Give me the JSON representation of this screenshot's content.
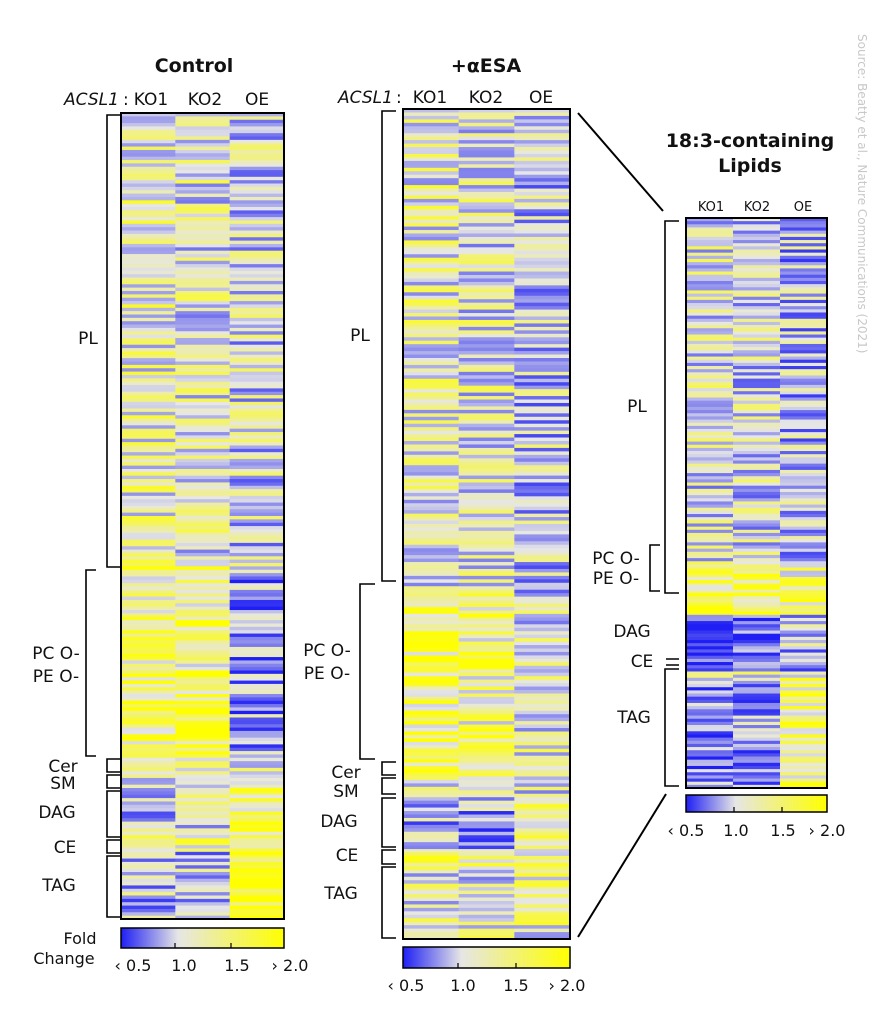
{
  "source": "Source: Beatty et al., Nature Communications (2021)",
  "colors": {
    "low": "#1f1ff5",
    "mid": "#e6e6e6",
    "high": "#ffff00"
  },
  "legend": {
    "fold_label_1": "Fold",
    "fold_label_2": "Change",
    "ticks": [
      "‹ 0.5",
      "1.0",
      "1.5",
      "› 2.0"
    ]
  },
  "chart_data": [
    {
      "type": "heatmap",
      "title": "Control",
      "gene_label": "ACSL1",
      "colon": ":",
      "columns": [
        "KO1",
        "KO2",
        "OE"
      ],
      "value_range": [
        0.5,
        2.0
      ],
      "groups": [
        {
          "label": "PL",
          "rows": 135
        },
        {
          "label": "PC O-\nPE O-",
          "rows": 56
        },
        {
          "label": "Cer",
          "rows": 5
        },
        {
          "label": "SM",
          "rows": 4
        },
        {
          "label": "DAG",
          "rows": 15
        },
        {
          "label": "CE",
          "rows": 5
        },
        {
          "label": "TAG",
          "rows": 20
        }
      ],
      "group_means": [
        [
          1.15,
          1.05,
          0.95
        ],
        [
          1.45,
          1.35,
          0.75
        ],
        [
          1.0,
          1.1,
          1.0
        ],
        [
          1.0,
          1.05,
          1.05
        ],
        [
          0.9,
          0.95,
          1.4
        ],
        [
          1.5,
          1.3,
          1.2
        ],
        [
          0.85,
          0.85,
          1.9
        ]
      ]
    },
    {
      "type": "heatmap",
      "title": "+αESA",
      "gene_label": "ACSL1",
      "colon": ":",
      "columns": [
        "KO1",
        "KO2",
        "OE"
      ],
      "value_range": [
        0.5,
        2.0
      ],
      "groups": [
        {
          "label": "PL",
          "rows": 140
        },
        {
          "label": "PC O-\nPE O-",
          "rows": 53
        },
        {
          "label": "Cer",
          "rows": 3
        },
        {
          "label": "SM",
          "rows": 3
        },
        {
          "label": "DAG",
          "rows": 15
        },
        {
          "label": "CE",
          "rows": 6
        },
        {
          "label": "TAG",
          "rows": 20
        }
      ],
      "group_means": [
        [
          1.1,
          1.05,
          0.9
        ],
        [
          1.45,
          1.35,
          1.05
        ],
        [
          1.05,
          1.0,
          1.0
        ],
        [
          1.0,
          1.0,
          1.05
        ],
        [
          0.85,
          0.8,
          1.2
        ],
        [
          1.35,
          1.25,
          1.15
        ],
        [
          1.1,
          1.05,
          1.15
        ]
      ]
    },
    {
      "type": "heatmap",
      "title": "18:3-containing\nLipids",
      "gene_label": "",
      "colon": "",
      "columns": [
        "KO1",
        "KO2",
        "OE"
      ],
      "value_range": [
        0.5,
        2.0
      ],
      "groups": [
        {
          "label": "PL",
          "rows": 110
        },
        {
          "label": "PC O-\nPE O-",
          "rows": 16
        },
        {
          "label": "DAG",
          "rows": 18
        },
        {
          "label": "CE",
          "rows": 2
        },
        {
          "label": "TAG",
          "rows": 35
        }
      ],
      "group_means": [
        [
          1.0,
          0.95,
          0.85
        ],
        [
          1.55,
          1.4,
          1.3
        ],
        [
          0.55,
          0.6,
          0.85
        ],
        [
          1.0,
          1.0,
          1.2
        ],
        [
          0.7,
          0.8,
          1.45
        ]
      ]
    }
  ]
}
